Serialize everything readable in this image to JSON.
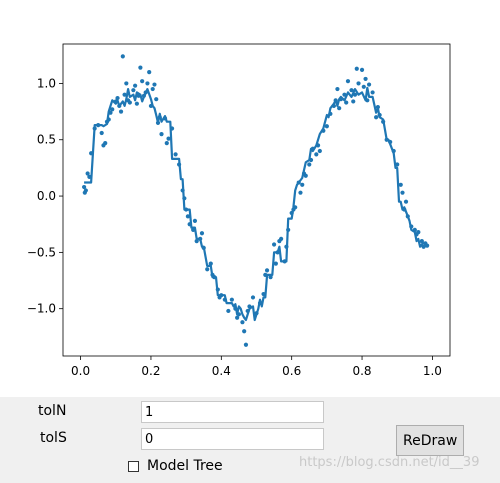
{
  "controls": {
    "toln_label": "tolN",
    "toln_value": "1",
    "tols_label": "tolS",
    "tols_value": "0",
    "redraw_label": "ReDraw",
    "model_tree_label": "Model Tree",
    "model_tree_checked": false
  },
  "watermark": "https://blog.csdn.net/id__39",
  "colors": {
    "series": "#1f77b4",
    "axes": "#000000",
    "panel_bg": "#f0f0f0"
  },
  "chart_data": {
    "type": "scatter",
    "title": "",
    "xlabel": "",
    "ylabel": "",
    "xlim": [
      -0.05,
      1.05
    ],
    "ylim": [
      -1.42,
      1.35
    ],
    "grid": false,
    "xticks": [
      0.0,
      0.2,
      0.4,
      0.6,
      0.8,
      1.0
    ],
    "xtick_labels": [
      "0.0",
      "0.2",
      "0.4",
      "0.6",
      "0.8",
      "1.0"
    ],
    "yticks": [
      -1.0,
      -0.5,
      0.0,
      0.5,
      1.0
    ],
    "ytick_labels": [
      "−1.0",
      "−0.5",
      "0.0",
      "0.5",
      "1.0"
    ],
    "series": [
      {
        "kind": "scatter",
        "points": [
          [
            0.01,
            0.08
          ],
          [
            0.012,
            0.03
          ],
          [
            0.015,
            0.05
          ],
          [
            0.02,
            0.2
          ],
          [
            0.025,
            0.17
          ],
          [
            0.03,
            0.38
          ],
          [
            0.04,
            0.6
          ],
          [
            0.05,
            0.63
          ],
          [
            0.06,
            0.56
          ],
          [
            0.065,
            0.45
          ],
          [
            0.07,
            0.47
          ],
          [
            0.075,
            0.66
          ],
          [
            0.08,
            0.68
          ],
          [
            0.085,
            0.74
          ],
          [
            0.09,
            0.77
          ],
          [
            0.1,
            0.84
          ],
          [
            0.105,
            0.87
          ],
          [
            0.11,
            0.8
          ],
          [
            0.115,
            0.75
          ],
          [
            0.12,
            1.24
          ],
          [
            0.125,
            0.9
          ],
          [
            0.13,
            1.0
          ],
          [
            0.135,
            0.85
          ],
          [
            0.14,
            0.83
          ],
          [
            0.15,
            0.94
          ],
          [
            0.155,
            0.98
          ],
          [
            0.16,
            0.82
          ],
          [
            0.165,
            0.89
          ],
          [
            0.17,
            1.14
          ],
          [
            0.175,
            1.02
          ],
          [
            0.18,
            0.89
          ],
          [
            0.185,
            0.92
          ],
          [
            0.19,
            1.0
          ],
          [
            0.195,
            1.1
          ],
          [
            0.2,
            0.8
          ],
          [
            0.205,
            0.95
          ],
          [
            0.21,
            0.99
          ],
          [
            0.215,
            0.86
          ],
          [
            0.22,
            0.65
          ],
          [
            0.225,
            0.7
          ],
          [
            0.23,
            0.55
          ],
          [
            0.24,
            0.69
          ],
          [
            0.245,
            0.47
          ],
          [
            0.25,
            0.51
          ],
          [
            0.26,
            0.6
          ],
          [
            0.27,
            0.37
          ],
          [
            0.28,
            0.28
          ],
          [
            0.29,
            0.05
          ],
          [
            0.295,
            -0.02
          ],
          [
            0.3,
            -0.12
          ],
          [
            0.305,
            -0.18
          ],
          [
            0.31,
            -0.25
          ],
          [
            0.32,
            -0.3
          ],
          [
            0.325,
            -0.22
          ],
          [
            0.33,
            -0.4
          ],
          [
            0.34,
            -0.38
          ],
          [
            0.345,
            -0.33
          ],
          [
            0.35,
            -0.46
          ],
          [
            0.36,
            -0.65
          ],
          [
            0.37,
            -0.6
          ],
          [
            0.375,
            -0.7
          ],
          [
            0.38,
            -0.72
          ],
          [
            0.39,
            -0.83
          ],
          [
            0.395,
            -0.9
          ],
          [
            0.4,
            -0.88
          ],
          [
            0.41,
            -0.92
          ],
          [
            0.42,
            -1.02
          ],
          [
            0.43,
            -0.92
          ],
          [
            0.44,
            -1.0
          ],
          [
            0.445,
            -1.08
          ],
          [
            0.45,
            -1.05
          ],
          [
            0.46,
            -1.12
          ],
          [
            0.465,
            -1.2
          ],
          [
            0.47,
            -1.32
          ],
          [
            0.475,
            -1.02
          ],
          [
            0.48,
            -0.98
          ],
          [
            0.49,
            -0.9
          ],
          [
            0.5,
            -1.04
          ],
          [
            0.51,
            -0.95
          ],
          [
            0.52,
            -0.87
          ],
          [
            0.525,
            -0.7
          ],
          [
            0.53,
            -0.66
          ],
          [
            0.54,
            -0.72
          ],
          [
            0.55,
            -0.43
          ],
          [
            0.555,
            -0.6
          ],
          [
            0.56,
            -0.5
          ],
          [
            0.565,
            -0.4
          ],
          [
            0.57,
            -0.38
          ],
          [
            0.58,
            -0.58
          ],
          [
            0.585,
            -0.45
          ],
          [
            0.59,
            -0.3
          ],
          [
            0.6,
            -0.15
          ],
          [
            0.605,
            -0.12
          ],
          [
            0.61,
            -0.1
          ],
          [
            0.62,
            0.12
          ],
          [
            0.625,
            0.03
          ],
          [
            0.63,
            0.1
          ],
          [
            0.635,
            0.2
          ],
          [
            0.64,
            0.18
          ],
          [
            0.65,
            0.28
          ],
          [
            0.655,
            0.32
          ],
          [
            0.66,
            0.42
          ],
          [
            0.67,
            0.37
          ],
          [
            0.675,
            0.45
          ],
          [
            0.68,
            0.4
          ],
          [
            0.69,
            0.58
          ],
          [
            0.7,
            0.62
          ],
          [
            0.71,
            0.73
          ],
          [
            0.72,
            0.8
          ],
          [
            0.725,
            0.85
          ],
          [
            0.73,
            0.95
          ],
          [
            0.735,
            0.78
          ],
          [
            0.74,
            0.86
          ],
          [
            0.75,
            0.9
          ],
          [
            0.755,
            0.83
          ],
          [
            0.76,
            1.02
          ],
          [
            0.77,
            0.94
          ],
          [
            0.775,
            0.84
          ],
          [
            0.78,
            0.9
          ],
          [
            0.785,
            1.13
          ],
          [
            0.79,
            1.0
          ],
          [
            0.8,
            1.12
          ],
          [
            0.805,
            0.97
          ],
          [
            0.81,
            1.04
          ],
          [
            0.815,
            0.85
          ],
          [
            0.82,
            0.99
          ],
          [
            0.83,
            0.92
          ],
          [
            0.84,
            0.7
          ],
          [
            0.845,
            0.79
          ],
          [
            0.85,
            0.72
          ],
          [
            0.86,
            0.66
          ],
          [
            0.87,
            0.5
          ],
          [
            0.88,
            0.48
          ],
          [
            0.89,
            0.4
          ],
          [
            0.9,
            0.28
          ],
          [
            0.91,
            0.1
          ],
          [
            0.915,
            0.03
          ],
          [
            0.92,
            -0.12
          ],
          [
            0.925,
            -0.05
          ],
          [
            0.93,
            -0.18
          ],
          [
            0.94,
            -0.27
          ],
          [
            0.95,
            -0.3
          ],
          [
            0.955,
            -0.34
          ],
          [
            0.96,
            -0.32
          ],
          [
            0.97,
            -0.4
          ],
          [
            0.975,
            -0.45
          ],
          [
            0.98,
            -0.42
          ],
          [
            0.985,
            -0.44
          ]
        ]
      },
      {
        "kind": "line",
        "points": [
          [
            0.01,
            0.12
          ],
          [
            0.03,
            0.12
          ],
          [
            0.04,
            0.63
          ],
          [
            0.06,
            0.63
          ],
          [
            0.065,
            0.62
          ],
          [
            0.075,
            0.64
          ],
          [
            0.08,
            0.75
          ],
          [
            0.09,
            0.85
          ],
          [
            0.1,
            0.82
          ],
          [
            0.105,
            0.85
          ],
          [
            0.11,
            0.8
          ],
          [
            0.12,
            0.84
          ],
          [
            0.125,
            0.8
          ],
          [
            0.13,
            0.86
          ],
          [
            0.135,
            0.95
          ],
          [
            0.14,
            0.88
          ],
          [
            0.15,
            0.9
          ],
          [
            0.155,
            0.85
          ],
          [
            0.16,
            0.92
          ],
          [
            0.17,
            0.9
          ],
          [
            0.175,
            0.84
          ],
          [
            0.18,
            0.88
          ],
          [
            0.19,
            0.95
          ],
          [
            0.2,
            0.86
          ],
          [
            0.205,
            0.8
          ],
          [
            0.21,
            0.78
          ],
          [
            0.215,
            0.72
          ],
          [
            0.22,
            0.65
          ],
          [
            0.225,
            0.73
          ],
          [
            0.23,
            0.66
          ],
          [
            0.24,
            0.71
          ],
          [
            0.245,
            0.66
          ],
          [
            0.255,
            0.66
          ],
          [
            0.26,
            0.33
          ],
          [
            0.265,
            0.33
          ],
          [
            0.28,
            0.33
          ],
          [
            0.285,
            0.15
          ],
          [
            0.29,
            0.15
          ],
          [
            0.295,
            -0.12
          ],
          [
            0.31,
            -0.12
          ],
          [
            0.315,
            -0.28
          ],
          [
            0.325,
            -0.28
          ],
          [
            0.33,
            -0.38
          ],
          [
            0.34,
            -0.38
          ],
          [
            0.345,
            -0.45
          ],
          [
            0.35,
            -0.45
          ],
          [
            0.36,
            -0.62
          ],
          [
            0.37,
            -0.62
          ],
          [
            0.375,
            -0.72
          ],
          [
            0.385,
            -0.72
          ],
          [
            0.39,
            -0.88
          ],
          [
            0.41,
            -0.88
          ],
          [
            0.415,
            -0.95
          ],
          [
            0.43,
            -0.95
          ],
          [
            0.435,
            -0.98
          ],
          [
            0.44,
            -0.96
          ],
          [
            0.445,
            -1.05
          ],
          [
            0.45,
            -0.98
          ],
          [
            0.455,
            -1.0
          ],
          [
            0.46,
            -1.05
          ],
          [
            0.465,
            -1.08
          ],
          [
            0.47,
            -1.1
          ],
          [
            0.475,
            -1.05
          ],
          [
            0.48,
            -1.0
          ],
          [
            0.49,
            -0.98
          ],
          [
            0.495,
            -1.1
          ],
          [
            0.5,
            -1.05
          ],
          [
            0.505,
            -1.0
          ],
          [
            0.51,
            -0.92
          ],
          [
            0.515,
            -0.98
          ],
          [
            0.52,
            -0.9
          ],
          [
            0.525,
            -0.9
          ],
          [
            0.53,
            -0.7
          ],
          [
            0.545,
            -0.7
          ],
          [
            0.55,
            -0.5
          ],
          [
            0.56,
            -0.5
          ],
          [
            0.565,
            -0.45
          ],
          [
            0.57,
            -0.58
          ],
          [
            0.585,
            -0.58
          ],
          [
            0.59,
            -0.2
          ],
          [
            0.6,
            -0.2
          ],
          [
            0.605,
            -0.1
          ],
          [
            0.61,
            0.05
          ],
          [
            0.615,
            0.1
          ],
          [
            0.62,
            0.12
          ],
          [
            0.63,
            0.16
          ],
          [
            0.64,
            0.3
          ],
          [
            0.65,
            0.32
          ],
          [
            0.655,
            0.42
          ],
          [
            0.66,
            0.4
          ],
          [
            0.67,
            0.45
          ],
          [
            0.68,
            0.55
          ],
          [
            0.69,
            0.6
          ],
          [
            0.7,
            0.72
          ],
          [
            0.705,
            0.7
          ],
          [
            0.71,
            0.78
          ],
          [
            0.72,
            0.82
          ],
          [
            0.725,
            0.85
          ],
          [
            0.73,
            0.8
          ],
          [
            0.735,
            0.86
          ],
          [
            0.74,
            0.88
          ],
          [
            0.75,
            0.85
          ],
          [
            0.76,
            0.92
          ],
          [
            0.77,
            0.88
          ],
          [
            0.78,
            0.95
          ],
          [
            0.79,
            0.9
          ],
          [
            0.8,
            0.92
          ],
          [
            0.81,
            0.85
          ],
          [
            0.815,
            0.96
          ],
          [
            0.82,
            0.88
          ],
          [
            0.83,
            0.88
          ],
          [
            0.84,
            0.74
          ],
          [
            0.845,
            0.78
          ],
          [
            0.85,
            0.7
          ],
          [
            0.86,
            0.68
          ],
          [
            0.87,
            0.5
          ],
          [
            0.875,
            0.5
          ],
          [
            0.88,
            0.46
          ],
          [
            0.89,
            0.38
          ],
          [
            0.895,
            0.25
          ],
          [
            0.9,
            0.25
          ],
          [
            0.905,
            -0.05
          ],
          [
            0.91,
            -0.05
          ],
          [
            0.915,
            -0.12
          ],
          [
            0.92,
            -0.1
          ],
          [
            0.93,
            -0.18
          ],
          [
            0.935,
            -0.22
          ],
          [
            0.94,
            -0.3
          ],
          [
            0.95,
            -0.32
          ],
          [
            0.955,
            -0.4
          ],
          [
            0.96,
            -0.38
          ],
          [
            0.965,
            -0.45
          ],
          [
            0.97,
            -0.43
          ],
          [
            0.975,
            -0.41
          ]
        ]
      }
    ]
  }
}
